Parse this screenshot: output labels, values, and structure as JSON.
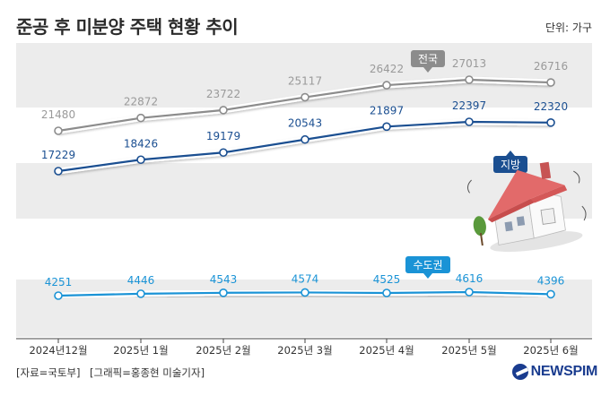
{
  "header": {
    "title": "준공 후 미분양 주택 현황 추이",
    "unit": "단위: 가구"
  },
  "footer": {
    "source": "[자료=국토부]",
    "credit": "[그래픽=홍종현 미술기자]",
    "logo": "NEWSPIM"
  },
  "chart_data": {
    "type": "line",
    "categories": [
      "2024년12월",
      "2025년 1월",
      "2025년 2월",
      "2025년 3월",
      "2025년 4월",
      "2025년 5월",
      "2025년 6월"
    ],
    "series": [
      {
        "name": "전국",
        "values": [
          21480,
          22872,
          23722,
          25117,
          26422,
          27013,
          26716
        ],
        "color": "#8c8c8c",
        "label_color": "#9a9a9a"
      },
      {
        "name": "지방",
        "values": [
          17229,
          18426,
          19179,
          20543,
          21897,
          22397,
          22320
        ],
        "color": "#1b4f91",
        "label_color": "#1b4f91"
      },
      {
        "name": "수도권",
        "values": [
          4251,
          4446,
          4543,
          4574,
          4525,
          4616,
          4396
        ],
        "color": "#1a93d6",
        "label_color": "#1a93d6"
      }
    ],
    "axis_break": true,
    "grid": "horizontal bands",
    "legend": "inline callout labels"
  }
}
